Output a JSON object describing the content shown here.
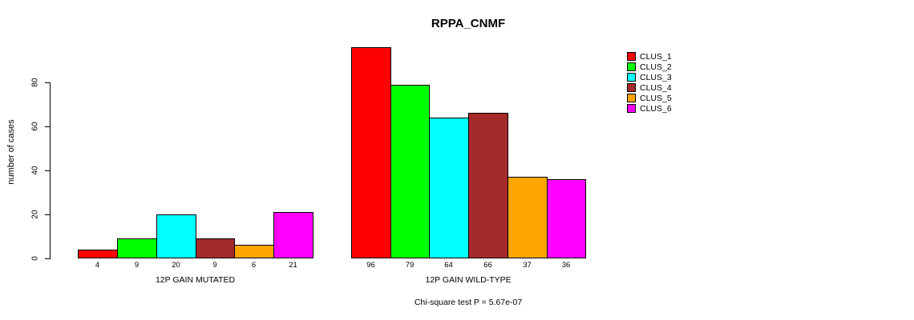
{
  "title": "RPPA_CNMF",
  "footer_annotation": "Chi-square test P = 5.67e-07",
  "chart_data": {
    "type": "bar",
    "title": "RPPA_CNMF",
    "xlabel": "",
    "ylabel": "number of cases",
    "ylim": [
      0,
      80
    ],
    "yticks": [
      0,
      20,
      40,
      60,
      80
    ],
    "grid": false,
    "legend_position": "top-right",
    "series_labels": [
      "CLUS_1",
      "CLUS_2",
      "CLUS_3",
      "CLUS_4",
      "CLUS_5",
      "CLUS_6"
    ],
    "colors": [
      "#FF0000",
      "#00FF00",
      "#00FFFF",
      "#A52A2A",
      "#FFA500",
      "#FF00FF"
    ],
    "groups": [
      {
        "label": "12P GAIN MUTATED",
        "values": [
          4,
          9,
          20,
          9,
          6,
          21
        ]
      },
      {
        "label": "12P GAIN WILD-TYPE",
        "values": [
          96,
          79,
          64,
          66,
          37,
          36
        ]
      }
    ],
    "bar_value_labels_shown": true,
    "annotation": "Chi-square test P = 5.67e-07"
  }
}
